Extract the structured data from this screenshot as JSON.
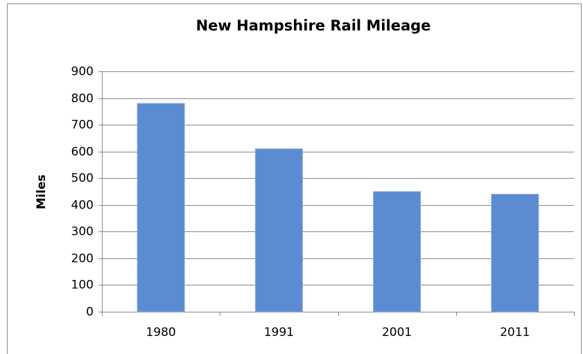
{
  "chart_data": {
    "type": "bar",
    "title": "New Hampshire Rail Mileage",
    "ylabel": "Miles",
    "categories": [
      "1980",
      "1991",
      "2001",
      "2011"
    ],
    "values": [
      780,
      610,
      450,
      440
    ],
    "color": "#5b8bd0",
    "ylim": [
      0,
      900
    ],
    "yticks": [
      0,
      100,
      200,
      300,
      400,
      500,
      600,
      700,
      800,
      900
    ],
    "grid": true
  }
}
